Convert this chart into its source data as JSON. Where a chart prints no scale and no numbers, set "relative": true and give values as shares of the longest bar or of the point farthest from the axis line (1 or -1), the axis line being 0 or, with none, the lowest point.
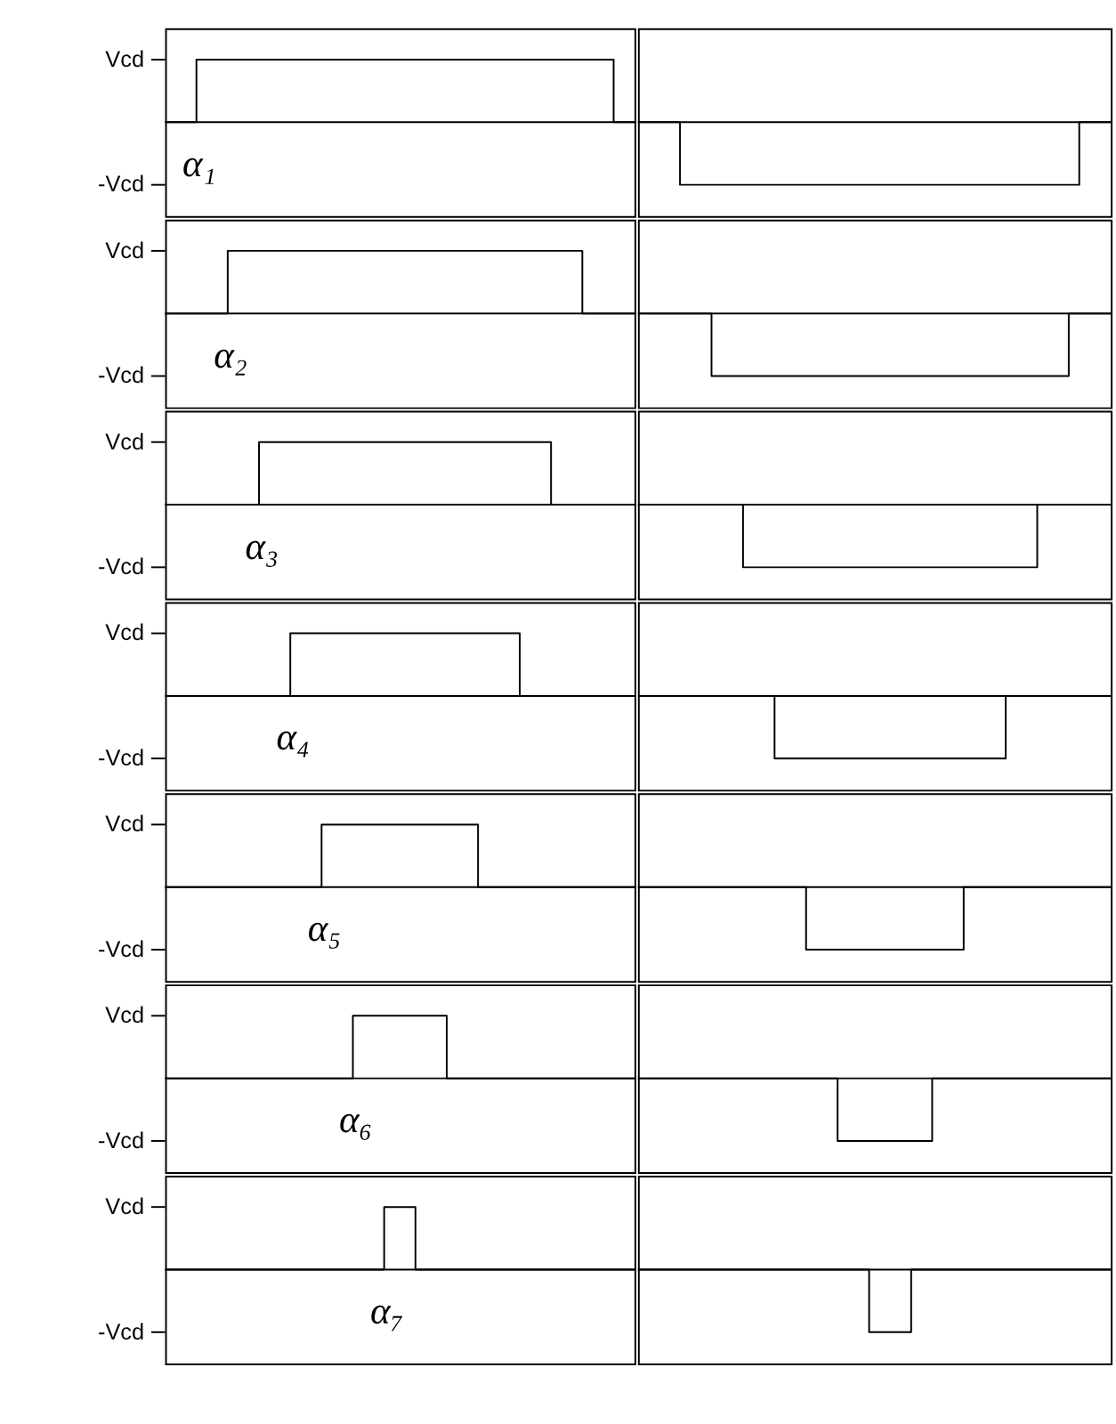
{
  "chart_data": [
    {
      "type": "step",
      "relative": true,
      "categories": [
        null,
        null,
        null,
        null,
        null,
        null,
        null,
        null,
        null,
        null,
        null,
        null,
        null,
        null,
        null,
        null,
        null,
        null,
        null,
        null,
        null,
        null,
        null,
        null,
        null,
        null,
        null,
        null,
        null,
        null,
        null,
        null,
        null,
        null,
        null,
        null,
        null,
        null,
        null,
        null,
        null,
        null,
        null,
        null,
        null,
        null
      ],
      "series": [
        {
          "color": "#000000",
          "values": [
            0,
            0,
            0,
            1,
            1,
            1,
            1,
            1,
            1,
            1,
            1,
            1,
            1,
            1,
            1,
            1,
            1,
            1,
            1,
            1,
            1,
            1,
            1,
            1,
            1,
            1,
            1,
            1,
            1,
            1,
            1,
            1,
            1,
            1,
            1,
            1,
            1,
            1,
            1,
            1,
            1,
            1,
            1,
            0,
            0,
            0
          ]
        }
      ],
      "line_style": "solid",
      "annotations": [
        "Vcd",
        "-Vcd",
        "α₁"
      ]
    },
    {
      "type": "step",
      "relative": true,
      "categories": [
        null,
        null,
        null,
        null,
        null,
        null,
        null,
        null,
        null,
        null,
        null,
        null,
        null,
        null,
        null,
        null,
        null,
        null,
        null,
        null,
        null,
        null,
        null,
        null,
        null,
        null,
        null,
        null,
        null,
        null,
        null,
        null,
        null,
        null,
        null,
        null,
        null,
        null,
        null,
        null,
        null,
        null,
        null,
        null,
        null,
        null
      ],
      "series": [
        {
          "color": "#000000",
          "values": [
            0,
            0,
            0,
            0,
            -1,
            -1,
            -1,
            -1,
            -1,
            -1,
            -1,
            -1,
            -1,
            -1,
            -1,
            -1,
            -1,
            -1,
            -1,
            -1,
            -1,
            -1,
            -1,
            -1,
            -1,
            -1,
            -1,
            -1,
            -1,
            -1,
            -1,
            -1,
            -1,
            -1,
            -1,
            -1,
            -1,
            -1,
            -1,
            -1,
            -1,
            -1,
            0,
            0,
            0,
            0
          ]
        }
      ],
      "line_style": "solid"
    },
    {
      "type": "step",
      "relative": true,
      "categories": [
        null,
        null,
        null,
        null,
        null,
        null,
        null,
        null,
        null,
        null,
        null,
        null,
        null,
        null,
        null,
        null,
        null,
        null,
        null,
        null,
        null,
        null,
        null,
        null,
        null,
        null,
        null,
        null,
        null,
        null,
        null,
        null,
        null,
        null,
        null,
        null,
        null,
        null,
        null,
        null,
        null,
        null,
        null,
        null,
        null,
        null
      ],
      "series": [
        {
          "color": "#000000",
          "values": [
            0,
            0,
            0,
            0,
            0,
            0,
            1,
            1,
            1,
            1,
            1,
            1,
            1,
            1,
            1,
            1,
            1,
            1,
            1,
            1,
            1,
            1,
            1,
            1,
            1,
            1,
            1,
            1,
            1,
            1,
            1,
            1,
            1,
            1,
            1,
            1,
            1,
            1,
            1,
            1,
            0,
            0,
            0,
            0,
            0,
            0
          ]
        }
      ],
      "line_style": "solid",
      "annotations": [
        "Vcd",
        "-Vcd",
        "α₂"
      ]
    },
    {
      "type": "step",
      "relative": true,
      "categories": [
        null,
        null,
        null,
        null,
        null,
        null,
        null,
        null,
        null,
        null,
        null,
        null,
        null,
        null,
        null,
        null,
        null,
        null,
        null,
        null,
        null,
        null,
        null,
        null,
        null,
        null,
        null,
        null,
        null,
        null,
        null,
        null,
        null,
        null,
        null,
        null,
        null,
        null,
        null,
        null,
        null,
        null,
        null,
        null,
        null,
        null
      ],
      "series": [
        {
          "color": "#000000",
          "values": [
            0,
            0,
            0,
            0,
            0,
            0,
            0,
            -1,
            -1,
            -1,
            -1,
            -1,
            -1,
            -1,
            -1,
            -1,
            -1,
            -1,
            -1,
            -1,
            -1,
            -1,
            -1,
            -1,
            -1,
            -1,
            -1,
            -1,
            -1,
            -1,
            -1,
            -1,
            -1,
            -1,
            -1,
            -1,
            -1,
            -1,
            -1,
            -1,
            -1,
            0,
            0,
            0,
            0,
            0
          ]
        }
      ],
      "line_style": "solid"
    },
    {
      "type": "step",
      "relative": true,
      "categories": [
        null,
        null,
        null,
        null,
        null,
        null,
        null,
        null,
        null,
        null,
        null,
        null,
        null,
        null,
        null,
        null,
        null,
        null,
        null,
        null,
        null,
        null,
        null,
        null,
        null,
        null,
        null,
        null,
        null,
        null,
        null,
        null,
        null,
        null,
        null,
        null,
        null,
        null,
        null,
        null,
        null,
        null,
        null,
        null,
        null,
        null
      ],
      "series": [
        {
          "color": "#000000",
          "values": [
            0,
            0,
            0,
            0,
            0,
            0,
            0,
            0,
            0,
            1,
            1,
            1,
            1,
            1,
            1,
            1,
            1,
            1,
            1,
            1,
            1,
            1,
            1,
            1,
            1,
            1,
            1,
            1,
            1,
            1,
            1,
            1,
            1,
            1,
            1,
            1,
            1,
            0,
            0,
            0,
            0,
            0,
            0,
            0,
            0,
            0
          ]
        }
      ],
      "line_style": "solid",
      "annotations": [
        "Vcd",
        "-Vcd",
        "α₃"
      ]
    },
    {
      "type": "step",
      "relative": true,
      "categories": [
        null,
        null,
        null,
        null,
        null,
        null,
        null,
        null,
        null,
        null,
        null,
        null,
        null,
        null,
        null,
        null,
        null,
        null,
        null,
        null,
        null,
        null,
        null,
        null,
        null,
        null,
        null,
        null,
        null,
        null,
        null,
        null,
        null,
        null,
        null,
        null,
        null,
        null,
        null,
        null,
        null,
        null,
        null,
        null,
        null,
        null
      ],
      "series": [
        {
          "color": "#000000",
          "values": [
            0,
            0,
            0,
            0,
            0,
            0,
            0,
            0,
            0,
            0,
            -1,
            -1,
            -1,
            -1,
            -1,
            -1,
            -1,
            -1,
            -1,
            -1,
            -1,
            -1,
            -1,
            -1,
            -1,
            -1,
            -1,
            -1,
            -1,
            -1,
            -1,
            -1,
            -1,
            -1,
            -1,
            -1,
            -1,
            -1,
            0,
            0,
            0,
            0,
            0,
            0,
            0,
            0
          ]
        }
      ],
      "line_style": "solid"
    },
    {
      "type": "step",
      "relative": true,
      "categories": [
        null,
        null,
        null,
        null,
        null,
        null,
        null,
        null,
        null,
        null,
        null,
        null,
        null,
        null,
        null,
        null,
        null,
        null,
        null,
        null,
        null,
        null,
        null,
        null,
        null,
        null,
        null,
        null,
        null,
        null,
        null,
        null,
        null,
        null,
        null,
        null,
        null,
        null,
        null,
        null,
        null,
        null,
        null,
        null,
        null,
        null
      ],
      "series": [
        {
          "color": "#000000",
          "values": [
            0,
            0,
            0,
            0,
            0,
            0,
            0,
            0,
            0,
            0,
            0,
            0,
            1,
            1,
            1,
            1,
            1,
            1,
            1,
            1,
            1,
            1,
            1,
            1,
            1,
            1,
            1,
            1,
            1,
            1,
            1,
            1,
            1,
            1,
            0,
            0,
            0,
            0,
            0,
            0,
            0,
            0,
            0,
            0,
            0,
            0
          ]
        }
      ],
      "line_style": "solid",
      "annotations": [
        "Vcd",
        "-Vcd",
        "α₄"
      ]
    },
    {
      "type": "step",
      "relative": true,
      "categories": [
        null,
        null,
        null,
        null,
        null,
        null,
        null,
        null,
        null,
        null,
        null,
        null,
        null,
        null,
        null,
        null,
        null,
        null,
        null,
        null,
        null,
        null,
        null,
        null,
        null,
        null,
        null,
        null,
        null,
        null,
        null,
        null,
        null,
        null,
        null,
        null,
        null,
        null,
        null,
        null,
        null,
        null,
        null,
        null,
        null,
        null
      ],
      "series": [
        {
          "color": "#000000",
          "values": [
            0,
            0,
            0,
            0,
            0,
            0,
            0,
            0,
            0,
            0,
            0,
            0,
            0,
            -1,
            -1,
            -1,
            -1,
            -1,
            -1,
            -1,
            -1,
            -1,
            -1,
            -1,
            -1,
            -1,
            -1,
            -1,
            -1,
            -1,
            -1,
            -1,
            -1,
            -1,
            -1,
            0,
            0,
            0,
            0,
            0,
            0,
            0,
            0,
            0,
            0,
            0
          ]
        }
      ],
      "line_style": "solid"
    },
    {
      "type": "step",
      "relative": true,
      "categories": [
        null,
        null,
        null,
        null,
        null,
        null,
        null,
        null,
        null,
        null,
        null,
        null,
        null,
        null,
        null,
        null,
        null,
        null,
        null,
        null,
        null,
        null,
        null,
        null,
        null,
        null,
        null,
        null,
        null,
        null,
        null,
        null,
        null,
        null,
        null,
        null,
        null,
        null,
        null,
        null,
        null,
        null,
        null,
        null,
        null,
        null
      ],
      "series": [
        {
          "color": "#000000",
          "values": [
            0,
            0,
            0,
            0,
            0,
            0,
            0,
            0,
            0,
            0,
            0,
            0,
            0,
            0,
            0,
            1,
            1,
            1,
            1,
            1,
            1,
            1,
            1,
            1,
            1,
            1,
            1,
            1,
            1,
            1,
            0,
            0,
            0,
            0,
            0,
            0,
            0,
            0,
            0,
            0,
            0,
            0,
            0,
            0,
            0,
            0
          ]
        }
      ],
      "line_style": "solid",
      "annotations": [
        "Vcd",
        "-Vcd",
        "α₅"
      ]
    },
    {
      "type": "step",
      "relative": true,
      "categories": [
        null,
        null,
        null,
        null,
        null,
        null,
        null,
        null,
        null,
        null,
        null,
        null,
        null,
        null,
        null,
        null,
        null,
        null,
        null,
        null,
        null,
        null,
        null,
        null,
        null,
        null,
        null,
        null,
        null,
        null,
        null,
        null,
        null,
        null,
        null,
        null,
        null,
        null,
        null,
        null,
        null,
        null,
        null,
        null,
        null,
        null
      ],
      "series": [
        {
          "color": "#000000",
          "values": [
            0,
            0,
            0,
            0,
            0,
            0,
            0,
            0,
            0,
            0,
            0,
            0,
            0,
            0,
            0,
            0,
            -1,
            -1,
            -1,
            -1,
            -1,
            -1,
            -1,
            -1,
            -1,
            -1,
            -1,
            -1,
            -1,
            -1,
            -1,
            0,
            0,
            0,
            0,
            0,
            0,
            0,
            0,
            0,
            0,
            0,
            0,
            0,
            0,
            0
          ]
        }
      ],
      "line_style": "solid"
    },
    {
      "type": "step",
      "relative": true,
      "categories": [
        null,
        null,
        null,
        null,
        null,
        null,
        null,
        null,
        null,
        null,
        null,
        null,
        null,
        null,
        null,
        null,
        null,
        null,
        null,
        null,
        null,
        null,
        null,
        null,
        null,
        null,
        null,
        null,
        null,
        null,
        null,
        null,
        null,
        null,
        null,
        null,
        null,
        null,
        null,
        null,
        null,
        null,
        null,
        null,
        null,
        null
      ],
      "series": [
        {
          "color": "#000000",
          "values": [
            0,
            0,
            0,
            0,
            0,
            0,
            0,
            0,
            0,
            0,
            0,
            0,
            0,
            0,
            0,
            0,
            0,
            0,
            1,
            1,
            1,
            1,
            1,
            1,
            1,
            1,
            1,
            0,
            0,
            0,
            0,
            0,
            0,
            0,
            0,
            0,
            0,
            0,
            0,
            0,
            0,
            0,
            0,
            0,
            0,
            0
          ]
        }
      ],
      "line_style": "solid",
      "annotations": [
        "Vcd",
        "-Vcd",
        "α₆"
      ]
    },
    {
      "type": "step",
      "relative": true,
      "categories": [
        null,
        null,
        null,
        null,
        null,
        null,
        null,
        null,
        null,
        null,
        null,
        null,
        null,
        null,
        null,
        null,
        null,
        null,
        null,
        null,
        null,
        null,
        null,
        null,
        null,
        null,
        null,
        null,
        null,
        null,
        null,
        null,
        null,
        null,
        null,
        null,
        null,
        null,
        null,
        null,
        null,
        null,
        null,
        null,
        null,
        null
      ],
      "series": [
        {
          "color": "#000000",
          "values": [
            0,
            0,
            0,
            0,
            0,
            0,
            0,
            0,
            0,
            0,
            0,
            0,
            0,
            0,
            0,
            0,
            0,
            0,
            0,
            -1,
            -1,
            -1,
            -1,
            -1,
            -1,
            -1,
            -1,
            -1,
            0,
            0,
            0,
            0,
            0,
            0,
            0,
            0,
            0,
            0,
            0,
            0,
            0,
            0,
            0,
            0,
            0,
            0
          ]
        }
      ],
      "line_style": "solid"
    },
    {
      "type": "step",
      "relative": true,
      "categories": [
        null,
        null,
        null,
        null,
        null,
        null,
        null,
        null,
        null,
        null,
        null,
        null,
        null,
        null,
        null,
        null,
        null,
        null,
        null,
        null,
        null,
        null,
        null,
        null,
        null,
        null,
        null,
        null,
        null,
        null,
        null,
        null,
        null,
        null,
        null,
        null,
        null,
        null,
        null,
        null,
        null,
        null,
        null,
        null,
        null,
        null
      ],
      "series": [
        {
          "color": "#000000",
          "values": [
            0,
            0,
            0,
            0,
            0,
            0,
            0,
            0,
            0,
            0,
            0,
            0,
            0,
            0,
            0,
            0,
            0,
            0,
            0,
            0,
            0,
            1,
            1,
            1,
            0,
            0,
            0,
            0,
            0,
            0,
            0,
            0,
            0,
            0,
            0,
            0,
            0,
            0,
            0,
            0,
            0,
            0,
            0,
            0,
            0,
            0
          ]
        }
      ],
      "line_style": "solid",
      "annotations": [
        "Vcd",
        "-Vcd",
        "α₇"
      ]
    },
    {
      "type": "step",
      "relative": true,
      "categories": [
        null,
        null,
        null,
        null,
        null,
        null,
        null,
        null,
        null,
        null,
        null,
        null,
        null,
        null,
        null,
        null,
        null,
        null,
        null,
        null,
        null,
        null,
        null,
        null,
        null,
        null,
        null,
        null,
        null,
        null,
        null,
        null,
        null,
        null,
        null,
        null,
        null,
        null,
        null,
        null,
        null,
        null,
        null,
        null,
        null,
        null
      ],
      "series": [
        {
          "color": "#000000",
          "values": [
            0,
            0,
            0,
            0,
            0,
            0,
            0,
            0,
            0,
            0,
            0,
            0,
            0,
            0,
            0,
            0,
            0,
            0,
            0,
            0,
            0,
            0,
            -1,
            -1,
            -1,
            -1,
            0,
            0,
            0,
            0,
            0,
            0,
            0,
            0,
            0,
            0,
            0,
            0,
            0,
            0,
            0,
            0,
            0,
            0,
            0,
            0
          ]
        }
      ],
      "line_style": "solid"
    }
  ]
}
